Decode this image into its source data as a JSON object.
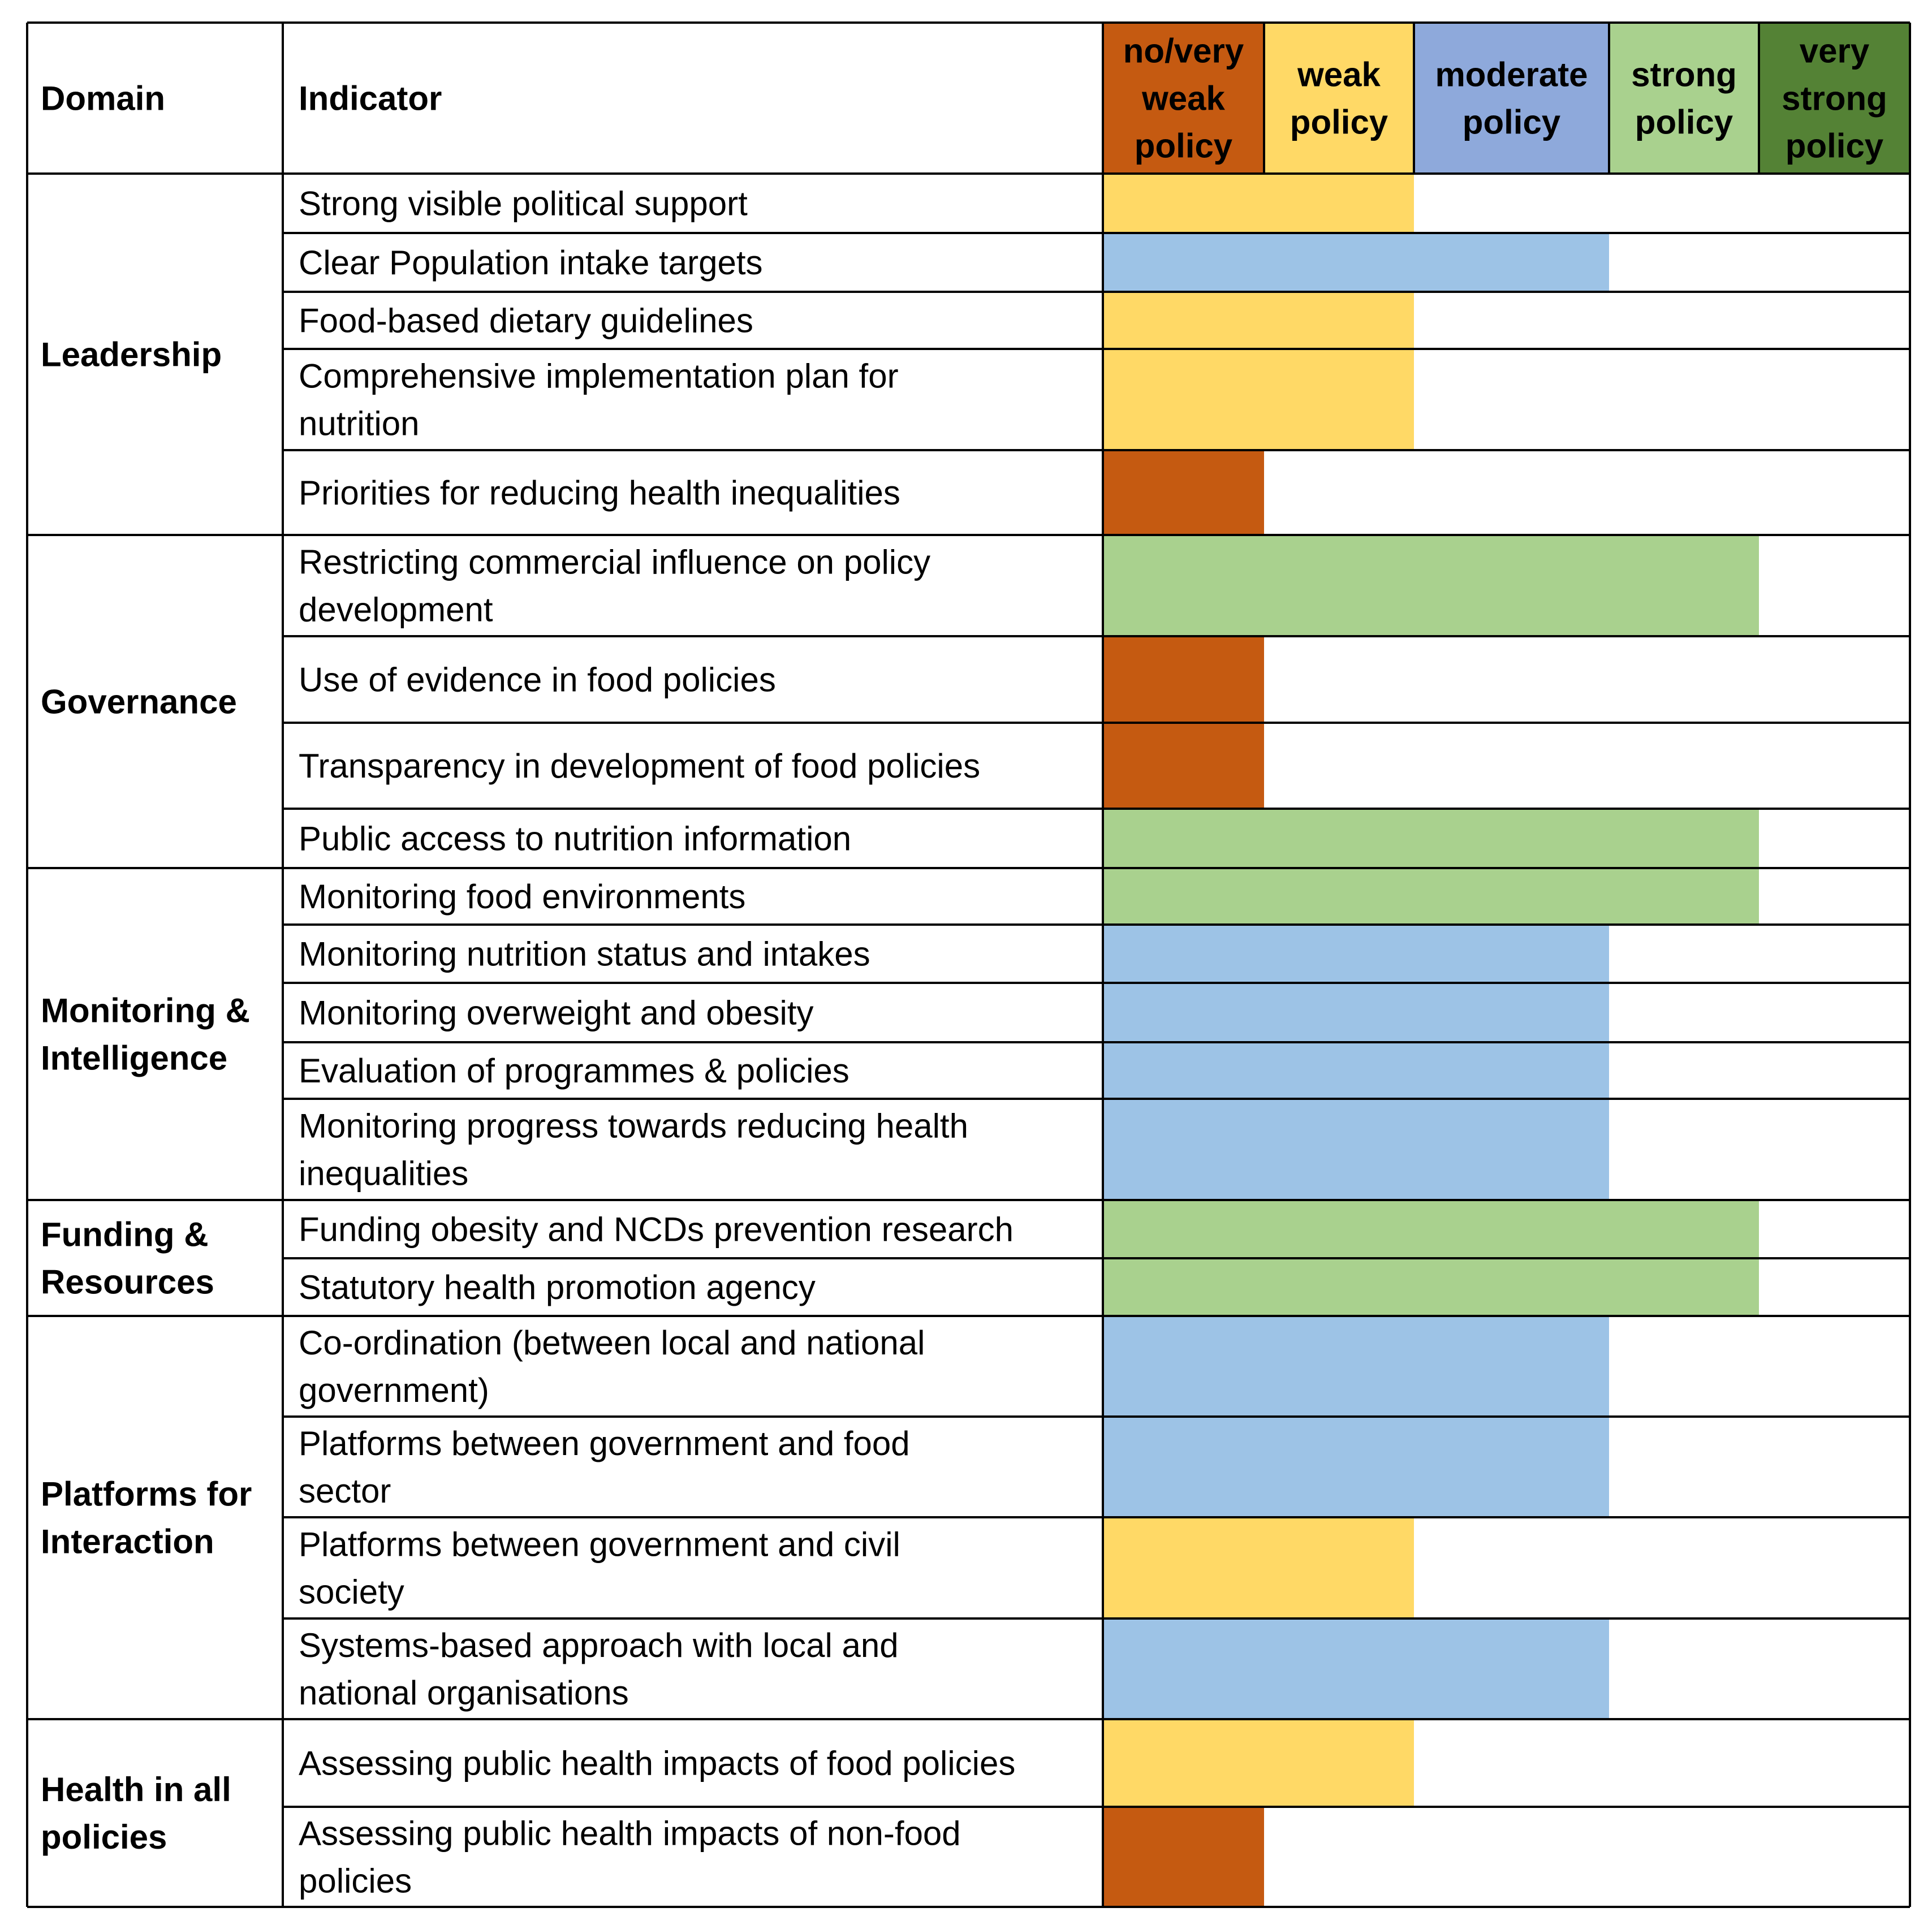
{
  "header": {
    "domain": "Domain",
    "indicator": "Indicator"
  },
  "levels": [
    {
      "lines": [
        "no/very",
        "weak",
        "policy"
      ],
      "color": "#C55A11"
    },
    {
      "lines": [
        "weak",
        "policy"
      ],
      "color": "#FFD966"
    },
    {
      "lines": [
        "moderate",
        "policy"
      ],
      "color": "#8EA9DB"
    },
    {
      "lines": [
        "strong",
        "policy"
      ],
      "color": "#A9D18E"
    },
    {
      "lines": [
        "very",
        "strong",
        "policy"
      ],
      "color": "#548235"
    }
  ],
  "bar_colors": [
    "#C55A11",
    "#FFD966",
    "#9DC3E6",
    "#A9D18E",
    "#548235"
  ],
  "domains": [
    {
      "lines": [
        "Leadership"
      ],
      "rows": 5
    },
    {
      "lines": [
        "Governance"
      ],
      "rows": 4
    },
    {
      "lines": [
        "Monitoring &",
        "Intelligence"
      ],
      "rows": 5
    },
    {
      "lines": [
        "Funding &",
        "Resources"
      ],
      "rows": 2
    },
    {
      "lines": [
        "Platforms for",
        "Interaction"
      ],
      "rows": 4
    },
    {
      "lines": [
        "Health in all",
        "policies"
      ],
      "rows": 2
    }
  ],
  "chart_data": {
    "type": "table",
    "level_scale": [
      "no/very weak policy",
      "weak policy",
      "moderate policy",
      "strong policy",
      "very strong policy"
    ],
    "indicators": [
      {
        "domain": "Leadership",
        "lines": [
          "Strong visible political support"
        ],
        "level": 2
      },
      {
        "domain": "Leadership",
        "lines": [
          "Clear Population intake targets"
        ],
        "level": 3
      },
      {
        "domain": "Leadership",
        "lines": [
          "Food-based dietary guidelines"
        ],
        "level": 2
      },
      {
        "domain": "Leadership",
        "lines": [
          "Comprehensive implementation plan for",
          "nutrition"
        ],
        "level": 2
      },
      {
        "domain": "Leadership",
        "lines": [
          "Priorities for reducing health inequalities"
        ],
        "level": 1
      },
      {
        "domain": "Governance",
        "lines": [
          "Restricting commercial influence on policy",
          "development"
        ],
        "level": 4
      },
      {
        "domain": "Governance",
        "lines": [
          "Use of evidence in food policies"
        ],
        "level": 1
      },
      {
        "domain": "Governance",
        "lines": [
          "Transparency in development of food policies"
        ],
        "level": 1
      },
      {
        "domain": "Governance",
        "lines": [
          "Public access to nutrition information"
        ],
        "level": 4
      },
      {
        "domain": "Monitoring & Intelligence",
        "lines": [
          "Monitoring food environments"
        ],
        "level": 4
      },
      {
        "domain": "Monitoring & Intelligence",
        "lines": [
          "Monitoring nutrition status and intakes"
        ],
        "level": 3
      },
      {
        "domain": "Monitoring & Intelligence",
        "lines": [
          "Monitoring overweight and obesity"
        ],
        "level": 3
      },
      {
        "domain": "Monitoring & Intelligence",
        "lines": [
          "Evaluation of programmes & policies"
        ],
        "level": 3
      },
      {
        "domain": "Monitoring & Intelligence",
        "lines": [
          "Monitoring progress towards reducing health",
          "inequalities"
        ],
        "level": 3
      },
      {
        "domain": "Funding & Resources",
        "lines": [
          "Funding obesity and NCDs prevention research"
        ],
        "level": 4
      },
      {
        "domain": "Funding & Resources",
        "lines": [
          "Statutory health promotion agency"
        ],
        "level": 4
      },
      {
        "domain": "Platforms for Interaction",
        "lines": [
          "Co-ordination (between local and national",
          "government)"
        ],
        "level": 3
      },
      {
        "domain": "Platforms for Interaction",
        "lines": [
          "Platforms between government and food",
          "sector"
        ],
        "level": 3
      },
      {
        "domain": "Platforms for Interaction",
        "lines": [
          "Platforms between government and civil",
          "society"
        ],
        "level": 2
      },
      {
        "domain": "Platforms for Interaction",
        "lines": [
          "Systems-based approach with local and",
          "national organisations"
        ],
        "level": 3
      },
      {
        "domain": "Health in all policies",
        "lines": [
          "Assessing public health impacts of food policies"
        ],
        "level": 2
      },
      {
        "domain": "Health in all policies",
        "lines": [
          "Assessing public health impacts of non-food",
          "policies"
        ],
        "level": 1
      }
    ]
  }
}
